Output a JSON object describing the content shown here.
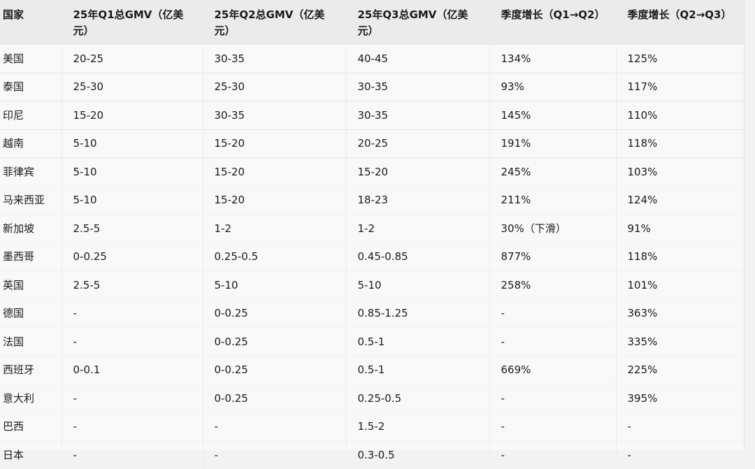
{
  "table": {
    "headers": [
      "国家",
      "25年Q1总GMV（亿美元）",
      "25年Q2总GMV（亿美元）",
      "25年Q3总GMV（亿美元）",
      "季度增长（Q1→Q2）",
      "季度增长（Q2→Q3）"
    ],
    "rows": [
      [
        "美国",
        "20-25",
        "30-35",
        "40-45",
        "134%",
        "125%"
      ],
      [
        "泰国",
        "25-30",
        "25-30",
        "30-35",
        "93%",
        "117%"
      ],
      [
        "印尼",
        "15-20",
        "30-35",
        "30-35",
        "145%",
        "110%"
      ],
      [
        "越南",
        "5-10",
        "15-20",
        "20-25",
        "191%",
        "118%"
      ],
      [
        "菲律宾",
        "5-10",
        "15-20",
        "15-20",
        "245%",
        "103%"
      ],
      [
        "马来西亚",
        "5-10",
        "15-20",
        "18-23",
        "211%",
        "124%"
      ],
      [
        "新加坡",
        "2.5-5",
        "1-2",
        "1-2",
        "30%（下滑）",
        "91%"
      ],
      [
        "墨西哥",
        "0-0.25",
        "0.25-0.5",
        "0.45-0.85",
        "877%",
        "118%"
      ],
      [
        "英国",
        "2.5-5",
        "5-10",
        "5-10",
        "258%",
        "101%"
      ],
      [
        "德国",
        "-",
        "0-0.25",
        "0.85-1.25",
        "-",
        "363%"
      ],
      [
        "法国",
        "-",
        "0-0.25",
        "0.5-1",
        "-",
        "335%"
      ],
      [
        "西班牙",
        "0-0.1",
        "0-0.25",
        "0.5-1",
        "669%",
        "225%"
      ],
      [
        "意大利",
        "-",
        "0-0.25",
        "0.25-0.5",
        "-",
        "395%"
      ],
      [
        "巴西",
        "-",
        "-",
        "1.5-2",
        "-",
        "-"
      ],
      [
        "日本",
        "-",
        "-",
        "0.3-0.5",
        "-",
        "-"
      ]
    ]
  }
}
